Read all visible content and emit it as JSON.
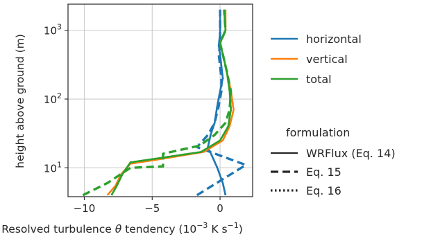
{
  "chart_data": {
    "type": "line",
    "xlabel_main": "Resolved turbulence ",
    "xlabel_symbol": "θ",
    "xlabel_mid": " tendency (10",
    "xlabel_exp1": "−3",
    "xlabel_unit": " K s",
    "xlabel_exp2": "−1",
    "xlabel_end": ")",
    "ylabel": "height above ground (m)",
    "xlim": [
      -11.2,
      2.4
    ],
    "ylim": [
      3.8,
      2400
    ],
    "yscale": "log",
    "grid": true,
    "x_ticks": [
      {
        "value": -10,
        "label": "−10"
      },
      {
        "value": -5,
        "label": "−5"
      },
      {
        "value": 0,
        "label": "0"
      }
    ],
    "y_ticks": [
      {
        "value": 10,
        "base": "10",
        "exp": "1"
      },
      {
        "value": 100,
        "base": "10",
        "exp": "2"
      },
      {
        "value": 1000,
        "base": "10",
        "exp": "3"
      }
    ],
    "legend": {
      "placement": "right",
      "series_title": "",
      "series": [
        {
          "name": "horizontal",
          "color": "#1f77b4"
        },
        {
          "name": "vertical",
          "color": "#ff7f0e"
        },
        {
          "name": "total",
          "color": "#2ca02c"
        }
      ],
      "formulation_title": "formulation",
      "formulations": [
        {
          "name": "WRFlux (Eq. 14)",
          "style": "solid"
        },
        {
          "name": "Eq. 15",
          "style": "dashed"
        },
        {
          "name": "Eq. 16",
          "style": "dotted"
        }
      ]
    },
    "series": [
      {
        "name": "horizontal",
        "formulation": "WRFlux (Eq. 14)",
        "color": "#1f77b4",
        "style": "solid",
        "x": [
          0.4,
          0.2,
          -0.2,
          -0.6,
          -0.9,
          -0.7,
          -0.4,
          -0.2,
          0.0,
          0.2,
          0.1,
          0.0,
          -0.1,
          0.0,
          0.0,
          0.0
        ],
        "y": [
          4,
          6,
          10,
          15,
          20,
          30,
          45,
          80,
          130,
          200,
          300,
          450,
          600,
          900,
          1400,
          2000
        ]
      },
      {
        "name": "horizontal",
        "formulation": "Eq. 15",
        "color": "#1f77b4",
        "style": "dashed",
        "x": [
          -1.7,
          1.9,
          -1.7,
          -0.9,
          -0.4,
          -0.1,
          0.1,
          0.1,
          0.0,
          -0.1,
          0.0,
          0.0,
          0.0
        ],
        "y": [
          4,
          11,
          20,
          30,
          45,
          80,
          130,
          200,
          300,
          450,
          600,
          1000,
          2000
        ]
      },
      {
        "name": "horizontal",
        "formulation": "Eq. 16",
        "color": "#1f77b4",
        "style": "dotted",
        "x": [
          0.4,
          0.2,
          -0.2,
          -0.6,
          -0.9,
          -0.7,
          -0.4,
          -0.2,
          0.0,
          0.2,
          0.1,
          0.0,
          -0.1,
          0.0,
          0.0,
          0.0
        ],
        "y": [
          4,
          6,
          10,
          15,
          20,
          30,
          45,
          80,
          130,
          200,
          300,
          450,
          600,
          900,
          1400,
          2000
        ]
      },
      {
        "name": "vertical",
        "formulation": "WRFlux (Eq. 14)",
        "color": "#ff7f0e",
        "style": "solid",
        "x": [
          -8.3,
          -7.7,
          -7.3,
          -6.6,
          -4.8,
          -1.2,
          0.2,
          0.7,
          1.0,
          0.8,
          0.5,
          0.2,
          0.0,
          0.4,
          0.4
        ],
        "y": [
          4,
          5.5,
          8,
          11.5,
          13,
          17,
          25,
          40,
          70,
          130,
          250,
          450,
          650,
          1000,
          2000
        ]
      },
      {
        "name": "total",
        "formulation": "WRFlux (Eq. 14)",
        "color": "#2ca02c",
        "style": "solid",
        "x": [
          -8.0,
          -7.6,
          -7.2,
          -6.6,
          -4.8,
          -1.4,
          0.0,
          0.6,
          0.8,
          0.7,
          0.5,
          0.2,
          0.0,
          0.4,
          0.3
        ],
        "y": [
          4,
          5.5,
          8,
          12,
          13.5,
          17,
          25,
          40,
          70,
          130,
          250,
          450,
          650,
          1000,
          2000
        ]
      },
      {
        "name": "total",
        "formulation": "Eq. 15",
        "color": "#2ca02c",
        "style": "dashed",
        "x": [
          -10.1,
          -8.3,
          -6.6,
          -4.2,
          -4.2,
          -1.5,
          -0.4,
          0.4,
          0.7,
          0.8,
          0.5,
          0.2,
          0.0,
          0.4,
          0.3
        ],
        "y": [
          4,
          6,
          10,
          10.5,
          16,
          21,
          30,
          45,
          70,
          130,
          250,
          450,
          650,
          1000,
          2000
        ]
      },
      {
        "name": "total",
        "formulation": "Eq. 16",
        "color": "#2ca02c",
        "style": "dotted",
        "x": [
          -8.0,
          -7.6,
          -7.2,
          -6.6,
          -4.8,
          -1.4,
          0.0,
          0.6,
          0.8,
          0.7,
          0.5,
          0.2,
          0.0,
          0.4,
          0.3
        ],
        "y": [
          4,
          5.5,
          8,
          12,
          13.5,
          17,
          25,
          40,
          70,
          130,
          250,
          450,
          650,
          1000,
          2000
        ]
      }
    ]
  }
}
